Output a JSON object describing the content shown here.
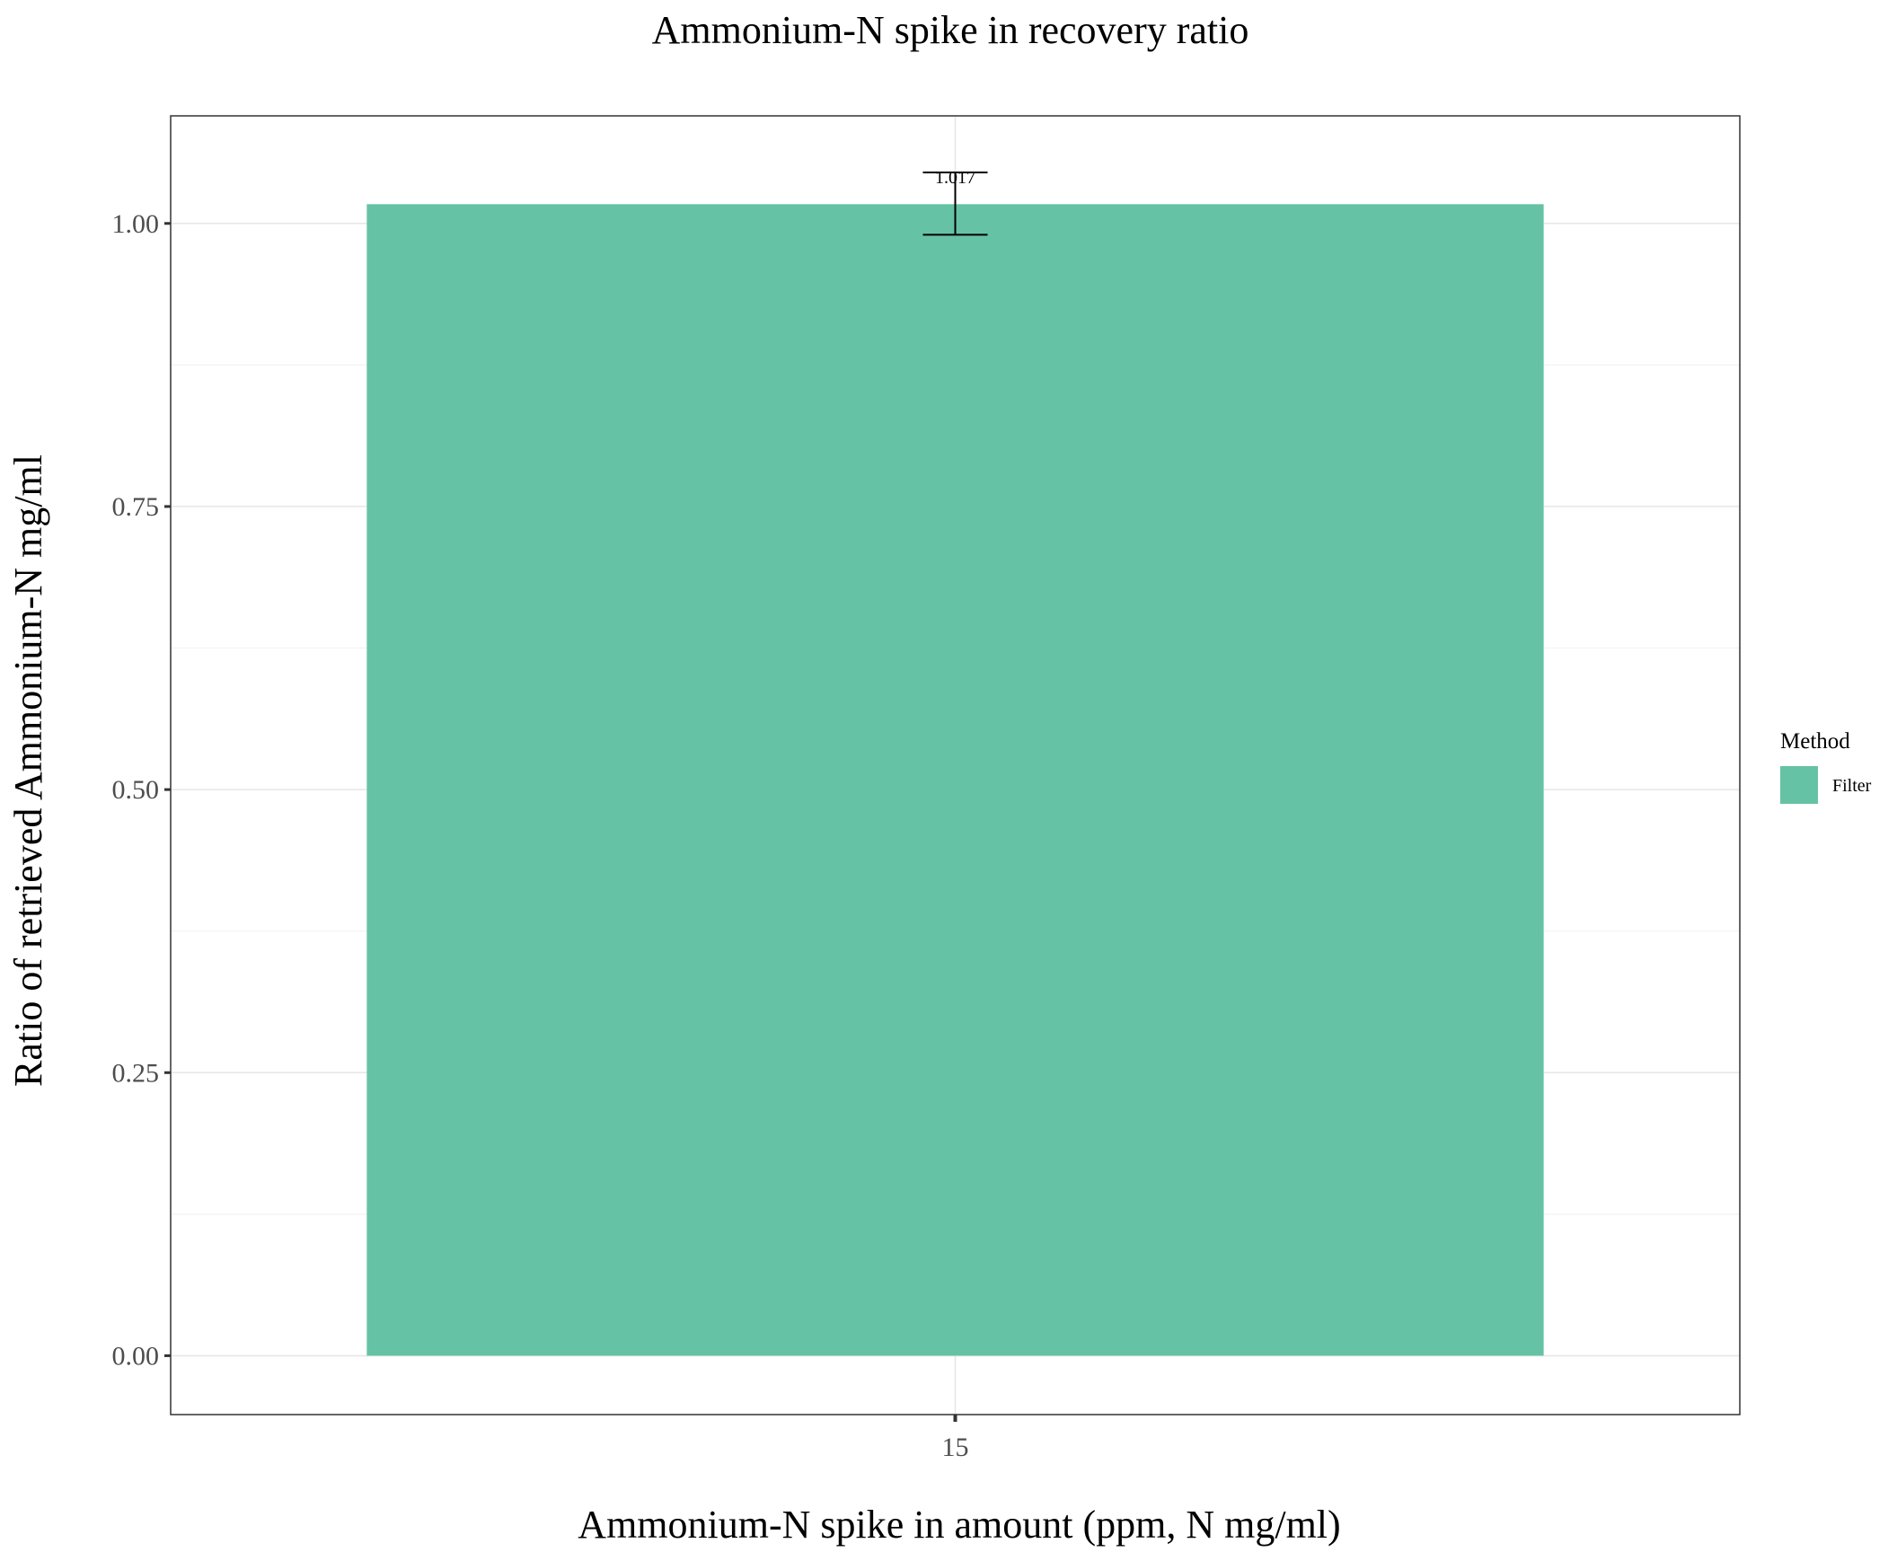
{
  "chart_data": {
    "type": "bar",
    "title": "Ammonium-N spike in recovery ratio",
    "xlabel": "Ammonium-N spike in amount (ppm, N mg/ml)",
    "ylabel": "Ratio of retrieved Ammonium-N mg/ml",
    "categories": [
      "15"
    ],
    "series": [
      {
        "name": "Filter",
        "values": [
          1.017
        ],
        "error_low": [
          0.99
        ],
        "error_high": [
          1.045
        ],
        "data_labels": [
          "1.017"
        ],
        "color": "#66c2a5"
      }
    ],
    "ylim": [
      -0.052,
      1.095
    ],
    "yticks": [
      0.0,
      0.25,
      0.5,
      0.75,
      1.0
    ],
    "ytick_labels": [
      "0.00",
      "0.25",
      "0.50",
      "0.75",
      "1.00"
    ],
    "grid": true,
    "legend": {
      "title": "Method",
      "position": "right",
      "entries": [
        "Filter"
      ]
    }
  }
}
